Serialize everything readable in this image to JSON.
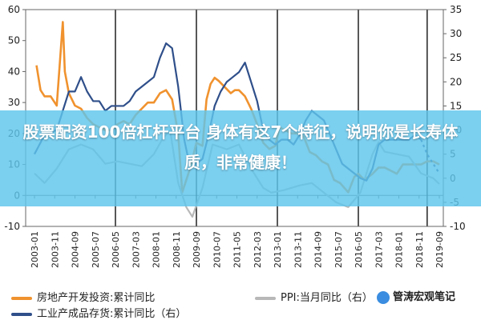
{
  "chart_data": {
    "type": "line",
    "x_ticks": [
      "2003-01",
      "2003-11",
      "2004-09",
      "2005-07",
      "2006-05",
      "2007-03",
      "2008-01",
      "2008-11",
      "2009-09",
      "2010-07",
      "2011-05",
      "2012-03",
      "2013-01",
      "2013-11",
      "2014-09",
      "2015-07",
      "2016-05",
      "2017-03",
      "2018-01",
      "2018-11",
      "2019-09"
    ],
    "left_axis": {
      "ticks": [
        60,
        50,
        40,
        30,
        20,
        10,
        0,
        -10
      ],
      "ylim": [
        -10,
        60
      ]
    },
    "right_axis": {
      "ticks": [
        35,
        30,
        25,
        20,
        15,
        10,
        5,
        0,
        -5,
        -10
      ],
      "ylim": [
        -10,
        35
      ]
    },
    "grid": false,
    "vertical_markers": [
      "2006-05",
      "2009-09",
      "2013-01",
      "2016-05",
      "2019-03"
    ],
    "series": [
      {
        "name": "房地产开发投资:累计同比",
        "axis": "left",
        "color": "#f0922e",
        "points": [
          [
            "2003-02",
            42
          ],
          [
            "2003-04",
            34
          ],
          [
            "2003-06",
            32
          ],
          [
            "2003-09",
            32
          ],
          [
            "2003-12",
            29
          ],
          [
            "2004-02",
            47
          ],
          [
            "2004-03",
            56
          ],
          [
            "2004-04",
            40
          ],
          [
            "2004-06",
            33
          ],
          [
            "2004-09",
            29
          ],
          [
            "2004-12",
            28
          ],
          [
            "2005-03",
            25
          ],
          [
            "2005-06",
            23
          ],
          [
            "2005-09",
            22
          ],
          [
            "2005-12",
            21
          ],
          [
            "2006-03",
            21
          ],
          [
            "2006-06",
            23
          ],
          [
            "2006-09",
            24
          ],
          [
            "2006-12",
            23
          ],
          [
            "2007-03",
            26
          ],
          [
            "2007-06",
            28
          ],
          [
            "2007-09",
            30
          ],
          [
            "2007-12",
            30
          ],
          [
            "2008-03",
            33
          ],
          [
            "2008-06",
            34
          ],
          [
            "2008-09",
            31
          ],
          [
            "2008-12",
            20
          ],
          [
            "2009-02",
            1
          ],
          [
            "2009-04",
            5
          ],
          [
            "2009-06",
            9
          ],
          [
            "2009-09",
            17
          ],
          [
            "2009-12",
            16
          ],
          [
            "2010-02",
            31
          ],
          [
            "2010-04",
            36
          ],
          [
            "2010-06",
            38
          ],
          [
            "2010-08",
            37
          ],
          [
            "2010-11",
            35
          ],
          [
            "2011-02",
            33
          ],
          [
            "2011-04",
            34
          ],
          [
            "2011-06",
            34
          ],
          [
            "2011-09",
            32
          ],
          [
            "2011-12",
            28
          ],
          [
            "2012-03",
            23
          ],
          [
            "2012-06",
            17
          ],
          [
            "2012-09",
            15
          ],
          [
            "2012-12",
            16
          ],
          [
            "2013-02",
            22
          ],
          [
            "2013-05",
            21
          ],
          [
            "2013-08",
            20
          ],
          [
            "2013-11",
            20
          ],
          [
            "2014-02",
            19
          ],
          [
            "2014-05",
            14
          ],
          [
            "2014-08",
            13
          ],
          [
            "2014-11",
            11
          ],
          [
            "2015-02",
            10
          ],
          [
            "2015-05",
            5
          ],
          [
            "2015-08",
            4
          ],
          [
            "2015-12",
            1
          ],
          [
            "2016-03",
            6
          ],
          [
            "2016-05",
            7
          ],
          [
            "2016-08",
            5
          ],
          [
            "2016-12",
            7
          ],
          [
            "2017-03",
            9
          ],
          [
            "2017-06",
            9
          ],
          [
            "2017-09",
            8
          ],
          [
            "2017-12",
            7
          ],
          [
            "2018-03",
            10
          ],
          [
            "2018-06",
            10
          ],
          [
            "2018-09",
            10
          ],
          [
            "2018-12",
            10
          ],
          [
            "2019-03",
            11
          ],
          [
            "2019-06",
            11
          ],
          [
            "2019-09",
            10
          ]
        ]
      },
      {
        "name": "PPI:当月同比（右）",
        "axis": "right",
        "color": "#b8b8b8",
        "points": [
          [
            "2003-01",
            1
          ],
          [
            "2003-06",
            -1
          ],
          [
            "2003-12",
            2
          ],
          [
            "2004-06",
            6
          ],
          [
            "2004-12",
            7
          ],
          [
            "2005-06",
            6
          ],
          [
            "2005-12",
            3
          ],
          [
            "2006-06",
            3.5
          ],
          [
            "2006-12",
            3
          ],
          [
            "2007-06",
            2.5
          ],
          [
            "2007-12",
            5
          ],
          [
            "2008-04",
            8
          ],
          [
            "2008-08",
            10
          ],
          [
            "2008-12",
            -1
          ],
          [
            "2009-04",
            -6
          ],
          [
            "2009-07",
            -8
          ],
          [
            "2009-12",
            -2
          ],
          [
            "2010-05",
            7
          ],
          [
            "2010-12",
            6
          ],
          [
            "2011-06",
            7
          ],
          [
            "2011-12",
            2
          ],
          [
            "2012-06",
            -2
          ],
          [
            "2012-10",
            -3
          ],
          [
            "2013-04",
            -2.5
          ],
          [
            "2013-12",
            -1.5
          ],
          [
            "2014-06",
            -1
          ],
          [
            "2014-12",
            -3
          ],
          [
            "2015-06",
            -5
          ],
          [
            "2015-12",
            -6
          ],
          [
            "2016-06",
            -3
          ],
          [
            "2016-12",
            5
          ],
          [
            "2017-03",
            7.5
          ],
          [
            "2017-06",
            5.5
          ],
          [
            "2017-12",
            5
          ],
          [
            "2018-06",
            4.5
          ],
          [
            "2018-12",
            1
          ],
          [
            "2019-03",
            0.5
          ],
          [
            "2019-06",
            0
          ],
          [
            "2019-09",
            -1.2
          ]
        ]
      },
      {
        "name": "工业产成品存货:累计同比（右）",
        "axis": "right",
        "color": "#2f4f8a",
        "points": [
          [
            "2003-01",
            5
          ],
          [
            "2003-06",
            9
          ],
          [
            "2003-12",
            10
          ],
          [
            "2004-03",
            14
          ],
          [
            "2004-06",
            18
          ],
          [
            "2004-09",
            18
          ],
          [
            "2004-12",
            21
          ],
          [
            "2005-03",
            18
          ],
          [
            "2005-06",
            16
          ],
          [
            "2005-09",
            16
          ],
          [
            "2005-12",
            14
          ],
          [
            "2006-03",
            15
          ],
          [
            "2006-06",
            15
          ],
          [
            "2006-09",
            15
          ],
          [
            "2006-12",
            16
          ],
          [
            "2007-03",
            18
          ],
          [
            "2007-06",
            19
          ],
          [
            "2007-09",
            20
          ],
          [
            "2007-12",
            21
          ],
          [
            "2008-03",
            25
          ],
          [
            "2008-06",
            28
          ],
          [
            "2008-09",
            27
          ],
          [
            "2008-12",
            19
          ],
          [
            "2009-03",
            8
          ],
          [
            "2009-06",
            2
          ],
          [
            "2009-09",
            3
          ],
          [
            "2009-12",
            4
          ],
          [
            "2010-03",
            9
          ],
          [
            "2010-06",
            15
          ],
          [
            "2010-09",
            18
          ],
          [
            "2010-12",
            20
          ],
          [
            "2011-03",
            21
          ],
          [
            "2011-06",
            22
          ],
          [
            "2011-09",
            24
          ],
          [
            "2011-12",
            20
          ],
          [
            "2012-03",
            16
          ],
          [
            "2012-06",
            10
          ],
          [
            "2012-09",
            8
          ],
          [
            "2012-12",
            7
          ],
          [
            "2013-03",
            8
          ],
          [
            "2013-06",
            8
          ],
          [
            "2013-09",
            7
          ],
          [
            "2013-12",
            9
          ],
          [
            "2014-03",
            12
          ],
          [
            "2014-06",
            14
          ],
          [
            "2014-09",
            13
          ],
          [
            "2014-12",
            12
          ],
          [
            "2015-03",
            9
          ],
          [
            "2015-06",
            6
          ],
          [
            "2015-09",
            3
          ],
          [
            "2015-12",
            2
          ],
          [
            "2016-03",
            1
          ],
          [
            "2016-06",
            0
          ],
          [
            "2016-09",
            -0.5
          ],
          [
            "2016-12",
            2
          ],
          [
            "2017-03",
            7
          ],
          [
            "2017-06",
            8
          ],
          [
            "2017-09",
            8
          ],
          [
            "2017-12",
            8
          ],
          [
            "2018-03",
            8
          ],
          [
            "2018-06",
            8
          ],
          [
            "2018-09",
            9
          ],
          [
            "2018-12",
            8
          ],
          [
            "2019-03",
            5
          ],
          [
            "2019-06",
            3
          ],
          [
            "2019-09",
            1
          ]
        ]
      }
    ]
  },
  "banner": {
    "text": "股票配资100倍杠杆平台 身体有这7个特征，说明你是长寿体质，非常健康！"
  },
  "legend": {
    "items": [
      {
        "label": "房地产开发投资:累计同比",
        "color": "#f0922e"
      },
      {
        "label": "PPI:当月同比（右）",
        "color": "#b8b8b8"
      },
      {
        "label": "工业产成品存货:累计同比（右）",
        "color": "#2f4f8a"
      }
    ]
  },
  "watermark": {
    "text": "管涛宏观笔记"
  }
}
